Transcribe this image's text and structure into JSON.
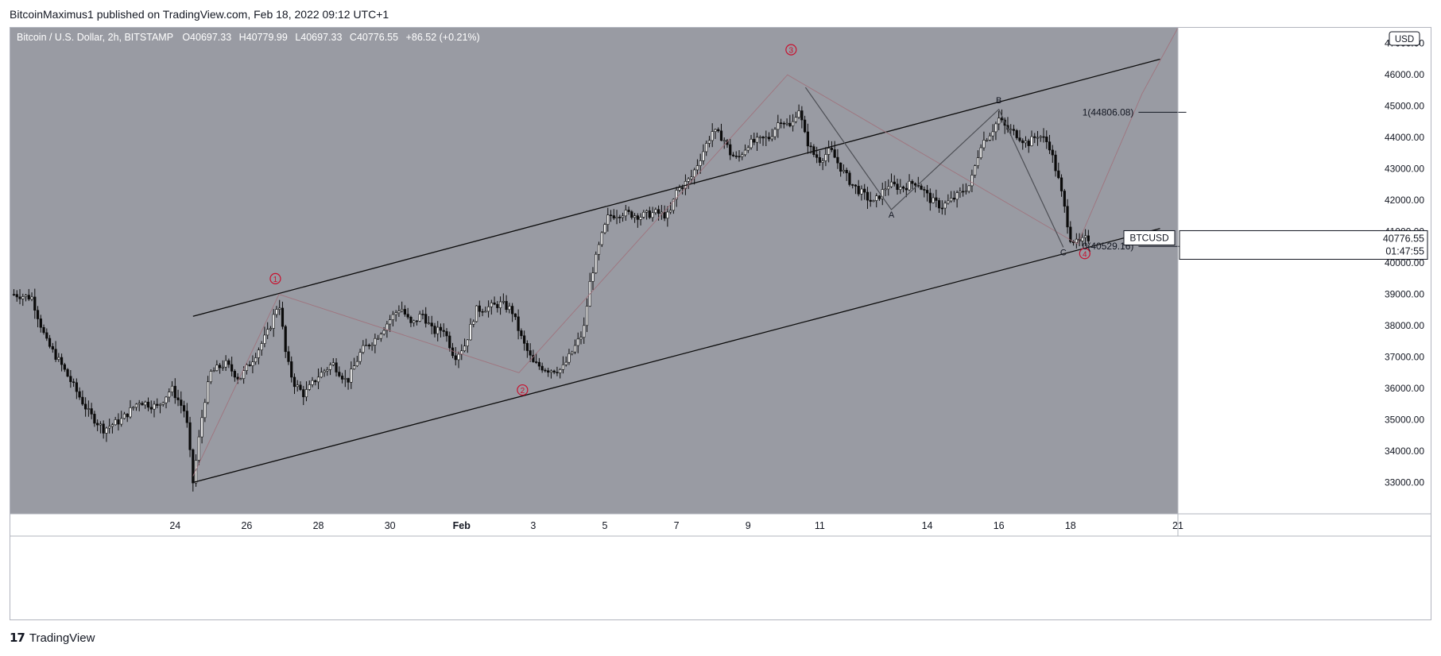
{
  "publisher": "BitcoinMaximus1 published on TradingView.com, Feb 18, 2022 09:12 UTC+1",
  "footer": {
    "brand": "TradingView"
  },
  "colors": {
    "background": "#999ba3",
    "candle": "#0b0b0b",
    "channel": "#0b0b0b",
    "wave_red": "#c8102e",
    "wave_path": "#a0707a",
    "abc_path": "#4d4f55",
    "axis_bg": "#ffffff",
    "text": "#131722"
  },
  "chart_data": {
    "type": "candlestick",
    "legend": {
      "symbol": "Bitcoin / U.S. Dollar, 2h, BITSTAMP",
      "open_label": "O",
      "open": "40697.33",
      "high_label": "H",
      "high": "40779.99",
      "low_label": "L",
      "low": "40697.33",
      "close_label": "C",
      "close": "40776.55",
      "change": "+86.52 (+0.21%)"
    },
    "currency": "USD",
    "ylim": [
      32000,
      47500
    ],
    "y_ticks": [
      {
        "value": 33000,
        "label": "33000.00"
      },
      {
        "value": 34000,
        "label": "34000.00"
      },
      {
        "value": 35000,
        "label": "35000.00"
      },
      {
        "value": 36000,
        "label": "36000.00"
      },
      {
        "value": 37000,
        "label": "37000.00"
      },
      {
        "value": 38000,
        "label": "38000.00"
      },
      {
        "value": 39000,
        "label": "39000.00"
      },
      {
        "value": 40000,
        "label": "40000.00"
      },
      {
        "value": 41000,
        "label": "41000.00"
      },
      {
        "value": 42000,
        "label": "42000.00"
      },
      {
        "value": 43000,
        "label": "43000.00"
      },
      {
        "value": 44000,
        "label": "44000.00"
      },
      {
        "value": 45000,
        "label": "45000.00"
      },
      {
        "value": 46000,
        "label": "46000.00"
      },
      {
        "value": 47000,
        "label": "47000.00"
      }
    ],
    "xlim": [
      -4.6,
      28.0
    ],
    "x_ticks": [
      {
        "day": 0,
        "label": "24"
      },
      {
        "day": 2,
        "label": "26"
      },
      {
        "day": 4,
        "label": "28"
      },
      {
        "day": 6,
        "label": "30"
      },
      {
        "day": 8,
        "label": "Feb",
        "bold": true
      },
      {
        "day": 10,
        "label": "3"
      },
      {
        "day": 12,
        "label": "5"
      },
      {
        "day": 14,
        "label": "7"
      },
      {
        "day": 16,
        "label": "9"
      },
      {
        "day": 18,
        "label": "11"
      },
      {
        "day": 21,
        "label": "14"
      },
      {
        "day": 23,
        "label": "16"
      },
      {
        "day": 25,
        "label": "18"
      },
      {
        "day": 28,
        "label": "21"
      }
    ],
    "price_keypoints": [
      [
        -4.5,
        39000
      ],
      [
        -4.0,
        38900
      ],
      [
        -3.6,
        37500
      ],
      [
        -3.2,
        36800
      ],
      [
        -2.8,
        36000
      ],
      [
        -2.4,
        35200
      ],
      [
        -2.0,
        34700
      ],
      [
        -1.5,
        35000
      ],
      [
        -1.0,
        35600
      ],
      [
        -0.5,
        35400
      ],
      [
        -0.1,
        36000
      ],
      [
        0.3,
        35200
      ],
      [
        0.5,
        33000
      ],
      [
        0.8,
        35500
      ],
      [
        1.0,
        36500
      ],
      [
        1.4,
        36800
      ],
      [
        1.8,
        36300
      ],
      [
        2.2,
        37000
      ],
      [
        2.6,
        37800
      ],
      [
        2.9,
        38800
      ],
      [
        3.1,
        37000
      ],
      [
        3.3,
        36200
      ],
      [
        3.6,
        35800
      ],
      [
        4.0,
        36400
      ],
      [
        4.4,
        36800
      ],
      [
        4.8,
        36200
      ],
      [
        5.2,
        37200
      ],
      [
        5.6,
        37600
      ],
      [
        6.0,
        38200
      ],
      [
        6.3,
        38600
      ],
      [
        6.6,
        38000
      ],
      [
        6.9,
        38400
      ],
      [
        7.2,
        37800
      ],
      [
        7.5,
        37900
      ],
      [
        7.8,
        37000
      ],
      [
        8.1,
        37400
      ],
      [
        8.4,
        38500
      ],
      [
        8.8,
        38600
      ],
      [
        9.1,
        38700
      ],
      [
        9.4,
        38500
      ],
      [
        9.7,
        37500
      ],
      [
        10.0,
        36800
      ],
      [
        10.4,
        36600
      ],
      [
        10.8,
        36600
      ],
      [
        11.1,
        37200
      ],
      [
        11.4,
        37800
      ],
      [
        11.6,
        39500
      ],
      [
        11.9,
        40800
      ],
      [
        12.1,
        41500
      ],
      [
        12.5,
        41600
      ],
      [
        13.0,
        41500
      ],
      [
        13.4,
        41600
      ],
      [
        13.8,
        41500
      ],
      [
        14.0,
        42300
      ],
      [
        14.4,
        42700
      ],
      [
        14.8,
        43700
      ],
      [
        15.0,
        44200
      ],
      [
        15.3,
        44000
      ],
      [
        15.5,
        43500
      ],
      [
        15.7,
        43300
      ],
      [
        16.0,
        43800
      ],
      [
        16.3,
        43900
      ],
      [
        16.6,
        44000
      ],
      [
        16.9,
        44600
      ],
      [
        17.2,
        44300
      ],
      [
        17.4,
        45000
      ],
      [
        17.6,
        44000
      ],
      [
        17.8,
        43500
      ],
      [
        18.0,
        43300
      ],
      [
        18.3,
        43600
      ],
      [
        18.6,
        43000
      ],
      [
        18.9,
        42500
      ],
      [
        19.2,
        42200
      ],
      [
        19.5,
        41900
      ],
      [
        19.9,
        42500
      ],
      [
        20.3,
        42400
      ],
      [
        20.7,
        42600
      ],
      [
        21.1,
        42000
      ],
      [
        21.4,
        41800
      ],
      [
        21.8,
        42100
      ],
      [
        22.2,
        42500
      ],
      [
        22.5,
        43800
      ],
      [
        22.8,
        44200
      ],
      [
        23.0,
        44600
      ],
      [
        23.2,
        44300
      ],
      [
        23.5,
        44100
      ],
      [
        23.8,
        43800
      ],
      [
        24.1,
        44100
      ],
      [
        24.4,
        43800
      ],
      [
        24.7,
        42500
      ],
      [
        25.0,
        40800
      ],
      [
        25.2,
        40600
      ],
      [
        25.4,
        40750
      ],
      [
        25.5,
        40780
      ]
    ],
    "channel": {
      "upper": [
        [
          0.5,
          38300
        ],
        [
          27.5,
          46500
        ]
      ],
      "lower": [
        [
          0.5,
          33000
        ],
        [
          27.5,
          41100
        ]
      ]
    },
    "wave_labels": [
      {
        "label": "1",
        "x": 2.8,
        "y": 39500
      },
      {
        "label": "2",
        "x": 9.7,
        "y": 35950
      },
      {
        "label": "3",
        "x": 17.2,
        "y": 46800
      },
      {
        "label": "4",
        "x": 25.4,
        "y": 40300
      }
    ],
    "wave_path": [
      [
        0.5,
        33200
      ],
      [
        2.9,
        39000
      ],
      [
        9.6,
        36500
      ],
      [
        17.1,
        46000
      ],
      [
        25.2,
        40600
      ],
      [
        27.0,
        45400
      ],
      [
        28.0,
        47500
      ]
    ],
    "abc_labels": [
      {
        "label": "A",
        "x": 20.0,
        "y": 41550
      },
      {
        "label": "B",
        "x": 23.0,
        "y": 45200
      },
      {
        "label": "C",
        "x": 24.8,
        "y": 40350
      }
    ],
    "abc_path": [
      [
        17.6,
        45600
      ],
      [
        20.0,
        41700
      ],
      [
        23.0,
        44900
      ],
      [
        24.8,
        40500
      ]
    ],
    "fib_levels": [
      {
        "label": "1(44806.08)",
        "value": 44806.08
      },
      {
        "label": "0(40529.16)",
        "value": 40529.16
      }
    ],
    "price_tag": {
      "symbol": "BTCUSD",
      "price": "40776.55",
      "countdown": "01:47:55",
      "value": 40776.55
    }
  }
}
